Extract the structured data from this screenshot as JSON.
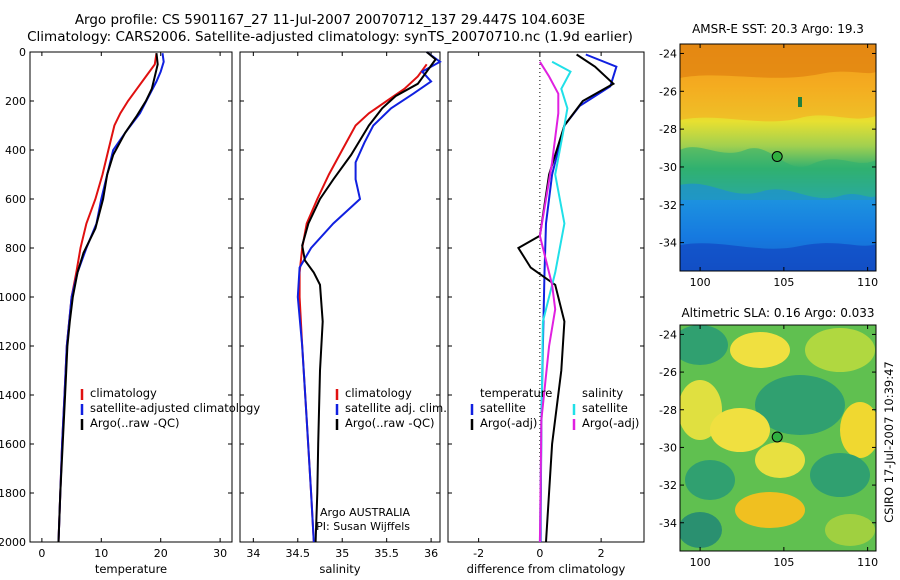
{
  "title": {
    "line1": "Argo profile: CS 5901167_27 11-Jul-2007 20070712_137 29.447S 104.603E",
    "line2": "Climatology: CARS2006. Satellite-adjusted climatology: synTS_20070710.nc (1.9d earlier)"
  },
  "side_label": "CSIRO 17-Jul-2007 10:39:47",
  "colors": {
    "climatology": "#e01010",
    "satellite": "#1020e0",
    "argo": "#000000",
    "cyan": "#20e0e8",
    "magenta": "#e020e0"
  },
  "chart_data": [
    {
      "type": "line",
      "xlabel": "temperature",
      "xlim": [
        -2,
        32
      ],
      "ylim": [
        2000,
        0
      ],
      "xticks": [
        0,
        10,
        20,
        30
      ],
      "yticks": [
        0,
        200,
        400,
        600,
        800,
        1000,
        1200,
        1400,
        1600,
        1800,
        2000
      ],
      "legend": [
        "climatology",
        "satellite-adjusted climatology",
        "Argo(..raw -QC)"
      ],
      "series": [
        {
          "name": "climatology",
          "color_key": "climatology",
          "points": [
            [
              19.3,
              5
            ],
            [
              19,
              50
            ],
            [
              17.5,
              100
            ],
            [
              16,
              150
            ],
            [
              14.5,
              200
            ],
            [
              13.2,
              250
            ],
            [
              12.2,
              300
            ],
            [
              11.2,
              400
            ],
            [
              10.2,
              500
            ],
            [
              9,
              600
            ],
            [
              7.5,
              700
            ],
            [
              6.5,
              800
            ],
            [
              5.8,
              900
            ],
            [
              5,
              1000
            ],
            [
              4.6,
              1100
            ],
            [
              4.2,
              1200
            ],
            [
              3.8,
              1400
            ],
            [
              3.4,
              1600
            ],
            [
              3.1,
              1800
            ],
            [
              2.8,
              2000
            ]
          ]
        },
        {
          "name": "satellite-adjusted climatology",
          "color_key": "satellite",
          "points": [
            [
              20.3,
              5
            ],
            [
              20.5,
              40
            ],
            [
              20,
              80
            ],
            [
              19.3,
              120
            ],
            [
              18,
              180
            ],
            [
              16.5,
              250
            ],
            [
              14,
              330
            ],
            [
              12,
              400
            ],
            [
              11,
              500
            ],
            [
              10,
              600
            ],
            [
              9.2,
              700
            ],
            [
              7.5,
              800
            ],
            [
              6,
              900
            ],
            [
              5,
              1000
            ],
            [
              4.6,
              1100
            ],
            [
              4.2,
              1200
            ],
            [
              3.8,
              1400
            ],
            [
              3.4,
              1600
            ],
            [
              3.1,
              1800
            ],
            [
              2.8,
              2000
            ]
          ]
        },
        {
          "name": "Argo(..raw -QC)",
          "color_key": "argo",
          "points": [
            [
              19.3,
              5
            ],
            [
              19.5,
              50
            ],
            [
              19,
              100
            ],
            [
              18.5,
              150
            ],
            [
              17.5,
              200
            ],
            [
              16,
              260
            ],
            [
              14,
              330
            ],
            [
              12,
              420
            ],
            [
              11,
              500
            ],
            [
              10.3,
              600
            ],
            [
              9,
              720
            ],
            [
              7,
              820
            ],
            [
              6,
              900
            ],
            [
              5.2,
              1000
            ],
            [
              4.7,
              1100
            ],
            [
              4.3,
              1200
            ],
            [
              3.9,
              1400
            ],
            [
              3.5,
              1600
            ],
            [
              3.1,
              1800
            ],
            [
              2.8,
              2000
            ]
          ]
        }
      ]
    },
    {
      "type": "line",
      "xlabel": "salinity",
      "xlim": [
        33.85,
        36.1
      ],
      "ylim": [
        2000,
        0
      ],
      "xticks": [
        34,
        34.5,
        35,
        35.5,
        36
      ],
      "legend": [
        "climatology",
        "satellite adj. clim.",
        "Argo(..raw -QC)"
      ],
      "annotations": [
        "Argo AUSTRALIA",
        "PI: Susan Wijffels"
      ],
      "series": [
        {
          "name": "climatology",
          "color_key": "climatology",
          "points": [
            [
              35.95,
              50
            ],
            [
              35.85,
              100
            ],
            [
              35.7,
              150
            ],
            [
              35.5,
              200
            ],
            [
              35.3,
              250
            ],
            [
              35.15,
              300
            ],
            [
              35.0,
              400
            ],
            [
              34.85,
              500
            ],
            [
              34.72,
              600
            ],
            [
              34.6,
              700
            ],
            [
              34.55,
              800
            ],
            [
              34.52,
              900
            ],
            [
              34.52,
              1000
            ],
            [
              34.55,
              1200
            ],
            [
              34.6,
              1500
            ],
            [
              34.65,
              1800
            ],
            [
              34.68,
              2000
            ]
          ]
        },
        {
          "name": "satellite adj. clim.",
          "color_key": "satellite",
          "points": [
            [
              35.95,
              0
            ],
            [
              36.1,
              40
            ],
            [
              35.9,
              80
            ],
            [
              36.0,
              120
            ],
            [
              35.8,
              170
            ],
            [
              35.55,
              230
            ],
            [
              35.35,
              300
            ],
            [
              35.25,
              370
            ],
            [
              35.15,
              450
            ],
            [
              35.15,
              520
            ],
            [
              35.2,
              600
            ],
            [
              34.9,
              700
            ],
            [
              34.65,
              800
            ],
            [
              34.52,
              880
            ],
            [
              34.5,
              1000
            ],
            [
              34.55,
              1200
            ],
            [
              34.6,
              1500
            ],
            [
              34.65,
              1800
            ],
            [
              34.68,
              2000
            ]
          ]
        },
        {
          "name": "Argo(..raw -QC)",
          "color_key": "argo",
          "points": [
            [
              35.95,
              0
            ],
            [
              36.05,
              30
            ],
            [
              35.95,
              80
            ],
            [
              35.85,
              130
            ],
            [
              35.6,
              180
            ],
            [
              35.45,
              230
            ],
            [
              35.3,
              300
            ],
            [
              35.1,
              420
            ],
            [
              34.9,
              520
            ],
            [
              34.75,
              600
            ],
            [
              34.62,
              700
            ],
            [
              34.55,
              790
            ],
            [
              34.58,
              850
            ],
            [
              34.68,
              900
            ],
            [
              34.75,
              950
            ],
            [
              34.78,
              1100
            ],
            [
              34.75,
              1300
            ],
            [
              34.73,
              1600
            ],
            [
              34.72,
              1800
            ],
            [
              34.7,
              2000
            ]
          ]
        }
      ]
    },
    {
      "type": "line",
      "xlabel": "difference from climatology",
      "xlim": [
        -3,
        3.4
      ],
      "ylim": [
        2000,
        0
      ],
      "xticks": [
        -2,
        0,
        2
      ],
      "legend_left_header": "temperature",
      "legend_right_header": "salinity",
      "legend_left": [
        "satellite",
        "Argo(-adj)"
      ],
      "legend_right": [
        "satellite",
        "Argo(-adj)"
      ],
      "series": [
        {
          "name": "temperature satellite",
          "color_key": "satellite",
          "points": [
            [
              1.5,
              10
            ],
            [
              2.5,
              60
            ],
            [
              2.3,
              140
            ],
            [
              1.3,
              220
            ],
            [
              0.8,
              300
            ],
            [
              0.4,
              500
            ],
            [
              0.2,
              700
            ],
            [
              0.15,
              900
            ],
            [
              0.1,
              1200
            ],
            [
              0.05,
              1500
            ],
            [
              0.02,
              2000
            ]
          ]
        },
        {
          "name": "temperature Argo(-adj)",
          "color_key": "argo",
          "points": [
            [
              1.2,
              10
            ],
            [
              1.8,
              60
            ],
            [
              2.4,
              130
            ],
            [
              1.4,
              200
            ],
            [
              0.8,
              300
            ],
            [
              0.3,
              500
            ],
            [
              0,
              750
            ],
            [
              -0.7,
              800
            ],
            [
              -0.3,
              880
            ],
            [
              0.5,
              950
            ],
            [
              0.8,
              1100
            ],
            [
              0.7,
              1300
            ],
            [
              0.4,
              1600
            ],
            [
              0.2,
              2000
            ]
          ]
        },
        {
          "name": "salinity satellite",
          "color_key": "cyan",
          "points": [
            [
              0.4,
              40
            ],
            [
              1.0,
              80
            ],
            [
              0.7,
              150
            ],
            [
              0.9,
              230
            ],
            [
              0.8,
              300
            ],
            [
              0.5,
              500
            ],
            [
              0.8,
              700
            ],
            [
              0.5,
              900
            ],
            [
              0.1,
              1100
            ],
            [
              0.0,
              2000
            ]
          ]
        },
        {
          "name": "salinity Argo(-adj)",
          "color_key": "magenta",
          "points": [
            [
              0,
              40
            ],
            [
              0.3,
              100
            ],
            [
              0.6,
              170
            ],
            [
              0.6,
              250
            ],
            [
              0.5,
              350
            ],
            [
              0.4,
              450
            ],
            [
              0.2,
              600
            ],
            [
              0,
              750
            ],
            [
              0.2,
              850
            ],
            [
              0.4,
              950
            ],
            [
              0.5,
              1050
            ],
            [
              0.3,
              1200
            ],
            [
              0.05,
              1500
            ],
            [
              0,
              2000
            ]
          ]
        }
      ]
    },
    {
      "type": "heatmap",
      "title": "AMSR-E SST: 20.3 Argo: 19.3",
      "xlim": [
        98.8,
        110.5
      ],
      "ylim": [
        -35.5,
        -23.5
      ],
      "xticks": [
        100,
        105,
        110
      ],
      "yticks": [
        -24,
        -26,
        -28,
        -30,
        -32,
        -34
      ],
      "marker": {
        "lon": 104.603,
        "lat": -29.447
      }
    },
    {
      "type": "heatmap",
      "title": "Altimetric SLA: 0.16 Argo: 0.033",
      "xlim": [
        98.8,
        110.5
      ],
      "ylim": [
        -35.5,
        -23.5
      ],
      "xticks": [
        100,
        105,
        110
      ],
      "yticks": [
        -24,
        -26,
        -28,
        -30,
        -32,
        -34
      ],
      "marker": {
        "lon": 104.603,
        "lat": -29.447
      }
    }
  ]
}
